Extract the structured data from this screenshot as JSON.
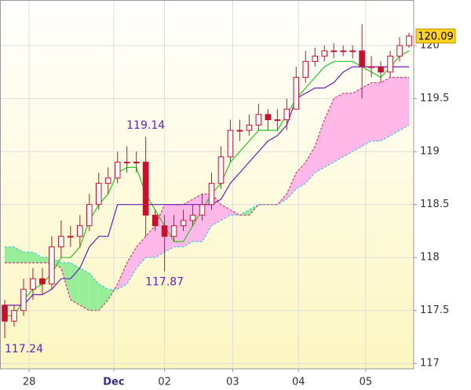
{
  "chart_data": {
    "type": "candlestick",
    "x": [
      0,
      1,
      2,
      3,
      4,
      5,
      6,
      7,
      8,
      9,
      10,
      11,
      12,
      13,
      14,
      15,
      16,
      17,
      18,
      19,
      20,
      21,
      22,
      23,
      24,
      25,
      26,
      27,
      28,
      29,
      30,
      31,
      32,
      33,
      34,
      35,
      36,
      37,
      38,
      39,
      40,
      41,
      42,
      43
    ],
    "xlim": [
      -0.5,
      43.5
    ],
    "xticks": [
      {
        "value": 2.6,
        "label": "28"
      },
      {
        "value": 11.6,
        "label": "Dec"
      },
      {
        "value": 17,
        "label": "02"
      },
      {
        "value": 24.25,
        "label": "03"
      },
      {
        "value": 31.25,
        "label": "04"
      },
      {
        "value": 38.4,
        "label": "05"
      }
    ],
    "ylim": [
      116.95,
      120.43
    ],
    "yticks": [
      117,
      117.5,
      118,
      118.5,
      119,
      119.5,
      120
    ],
    "grid": true,
    "candles": {
      "color": "#c8102e",
      "open": [
        117.55,
        117.4,
        117.5,
        117.7,
        117.8,
        117.75,
        118.1,
        118.2,
        118.2,
        118.3,
        118.5,
        118.7,
        118.75,
        118.9,
        118.9,
        118.9,
        118.4,
        118.3,
        118.2,
        118.3,
        118.35,
        118.4,
        118.5,
        118.7,
        118.95,
        119.2,
        119.2,
        119.25,
        119.35,
        119.3,
        119.3,
        119.4,
        119.7,
        119.85,
        119.9,
        119.95,
        119.95,
        119.95,
        119.95,
        119.8,
        119.8,
        119.75,
        119.9,
        120.0
      ],
      "high": [
        117.6,
        117.55,
        117.8,
        117.9,
        117.9,
        118.2,
        118.35,
        118.3,
        118.4,
        118.6,
        118.8,
        118.85,
        119.0,
        119.05,
        119.0,
        119.14,
        118.45,
        118.4,
        118.4,
        118.45,
        118.5,
        118.6,
        118.8,
        119.05,
        119.3,
        119.3,
        119.35,
        119.45,
        119.4,
        119.4,
        119.5,
        119.8,
        119.95,
        119.98,
        120.0,
        120.02,
        120.0,
        120.0,
        120.2,
        119.9,
        119.85,
        119.95,
        120.08,
        120.12
      ],
      "low": [
        117.24,
        117.35,
        117.45,
        117.6,
        117.65,
        117.7,
        118.0,
        118.1,
        118.1,
        118.25,
        118.45,
        118.6,
        118.7,
        118.8,
        118.8,
        118.2,
        118.25,
        117.87,
        118.15,
        118.25,
        118.3,
        118.35,
        118.45,
        118.65,
        118.9,
        119.1,
        119.15,
        119.2,
        119.2,
        119.2,
        119.2,
        119.4,
        119.65,
        119.8,
        119.85,
        119.88,
        119.9,
        119.88,
        119.5,
        119.7,
        119.65,
        119.7,
        119.85,
        119.98
      ],
      "close": [
        117.4,
        117.5,
        117.7,
        117.8,
        117.75,
        118.1,
        118.2,
        118.2,
        118.3,
        118.5,
        118.7,
        118.75,
        118.9,
        118.9,
        118.9,
        118.4,
        118.3,
        118.2,
        118.3,
        118.35,
        118.4,
        118.5,
        118.7,
        118.95,
        119.2,
        119.2,
        119.25,
        119.35,
        119.3,
        119.3,
        119.4,
        119.7,
        119.85,
        119.9,
        119.95,
        119.95,
        119.95,
        119.95,
        119.8,
        119.8,
        119.75,
        119.9,
        120.0,
        120.09
      ]
    },
    "lines": [
      {
        "color": "#22cc22",
        "values": [
          117.45,
          117.45,
          117.6,
          117.7,
          117.75,
          117.85,
          118.0,
          118.0,
          118.1,
          118.35,
          118.5,
          118.6,
          118.8,
          118.85,
          118.85,
          118.6,
          118.45,
          118.3,
          118.15,
          118.15,
          118.3,
          118.45,
          118.6,
          118.7,
          118.9,
          119.0,
          119.1,
          119.2,
          119.2,
          119.2,
          119.35,
          119.5,
          119.6,
          119.7,
          119.8,
          119.85,
          119.85,
          119.85,
          119.8,
          119.75,
          119.7,
          119.8,
          119.9,
          119.95
        ]
      },
      {
        "color": "#6a1fb8",
        "values": [
          117.55,
          117.55,
          117.55,
          117.65,
          117.65,
          117.7,
          117.8,
          117.8,
          117.9,
          118.1,
          118.2,
          118.2,
          118.5,
          118.5,
          118.5,
          118.5,
          118.5,
          118.5,
          118.5,
          118.5,
          118.5,
          118.5,
          118.5,
          118.55,
          118.7,
          118.8,
          118.9,
          119.0,
          119.1,
          119.15,
          119.25,
          119.5,
          119.55,
          119.6,
          119.6,
          119.65,
          119.75,
          119.8,
          119.8,
          119.8,
          119.8,
          119.8,
          119.8,
          119.8
        ]
      }
    ],
    "cloud": {
      "span_a": {
        "color": "#40c8e0",
        "values": [
          118.1,
          118.1,
          118.05,
          118.05,
          118.0,
          118.0,
          117.95,
          117.95,
          117.9,
          117.85,
          117.75,
          117.7,
          117.7,
          117.75,
          117.9,
          118.0,
          118.0,
          118.05,
          118.1,
          118.1,
          118.15,
          118.15,
          118.3,
          118.35,
          118.4,
          118.4,
          118.45,
          118.5,
          118.5,
          118.5,
          118.55,
          118.65,
          118.7,
          118.8,
          118.85,
          118.9,
          118.95,
          119.0,
          119.05,
          119.1,
          119.1,
          119.15,
          119.2,
          119.25
        ]
      },
      "span_b": {
        "color": "#d04070",
        "values": [
          117.95,
          117.95,
          117.95,
          117.95,
          117.95,
          117.95,
          117.9,
          117.6,
          117.55,
          117.5,
          117.5,
          117.6,
          117.75,
          117.95,
          118.1,
          118.2,
          118.3,
          118.5,
          118.5,
          118.5,
          118.55,
          118.6,
          118.6,
          118.5,
          118.45,
          118.4,
          118.4,
          118.5,
          118.5,
          118.5,
          118.6,
          118.8,
          118.9,
          119.05,
          119.3,
          119.5,
          119.55,
          119.55,
          119.6,
          119.65,
          119.65,
          119.7,
          119.7,
          119.7
        ]
      },
      "fill_above": "#98ee98",
      "fill_below": "#ffb8e8"
    },
    "annotations": [
      {
        "x": 0,
        "value": 117.24
      },
      {
        "x": 15,
        "value": 119.14
      },
      {
        "x": 17,
        "value": 117.87
      }
    ],
    "annotation_color": "#6a1fb8",
    "last_price_color": "#ffd21f"
  }
}
